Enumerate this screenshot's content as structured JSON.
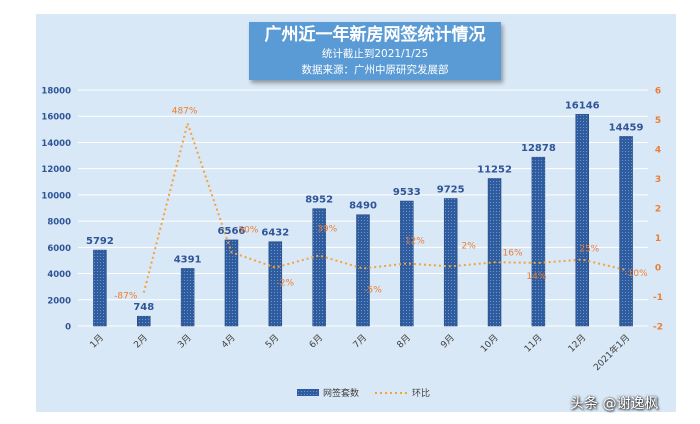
{
  "chart_data": {
    "type": "bar",
    "title": "广州近一年新房网签统计情况",
    "subtitle_lines": [
      "统计截止到2021/1/25",
      "数据来源：广州中原研究发展部"
    ],
    "categories": [
      "1月",
      "2月",
      "3月",
      "4月",
      "5月",
      "6月",
      "7月",
      "8月",
      "9月",
      "10月",
      "11月",
      "12月",
      "2021年1月"
    ],
    "series": [
      {
        "name": "网签套数",
        "type": "bar",
        "axis": "left",
        "values": [
          5792,
          748,
          4391,
          6566,
          6432,
          8952,
          8490,
          9533,
          9725,
          11252,
          12878,
          16146,
          14459
        ],
        "labels": [
          "5792",
          "748",
          "4391",
          "6566",
          "6432",
          "8952",
          "8490",
          "9533",
          "9725",
          "11252",
          "12878",
          "16146",
          "14459"
        ]
      },
      {
        "name": "环比",
        "type": "line",
        "axis": "right",
        "values": [
          null,
          -0.87,
          4.87,
          0.5,
          -0.02,
          0.39,
          -0.05,
          0.12,
          0.02,
          0.16,
          0.14,
          0.25,
          -0.1
        ],
        "labels": [
          "",
          "-87%",
          "487%",
          "50%",
          "-2%",
          "39%",
          "-5%",
          "12%",
          "2%",
          "16%",
          "14%",
          "25%",
          "-10%"
        ]
      }
    ],
    "y_left": {
      "min": 0,
      "max": 18000,
      "step": 2000,
      "ticks": [
        "0",
        "2000",
        "4000",
        "6000",
        "8000",
        "10000",
        "12000",
        "14000",
        "16000",
        "18000"
      ]
    },
    "y_right": {
      "min": -2,
      "max": 6,
      "step": 1,
      "ticks": [
        "-2",
        "-1",
        "0",
        "1",
        "2",
        "3",
        "4",
        "5",
        "6"
      ]
    },
    "legend_position": "bottom",
    "colors": {
      "bar": "#2e5c9e",
      "bar_label": "#2f5597",
      "line": "#f4a13c",
      "line_label": "#ed7d31",
      "left_tick": "#2f5597",
      "right_tick": "#ed7d31"
    }
  },
  "watermark": "头条 @谢逸枫"
}
